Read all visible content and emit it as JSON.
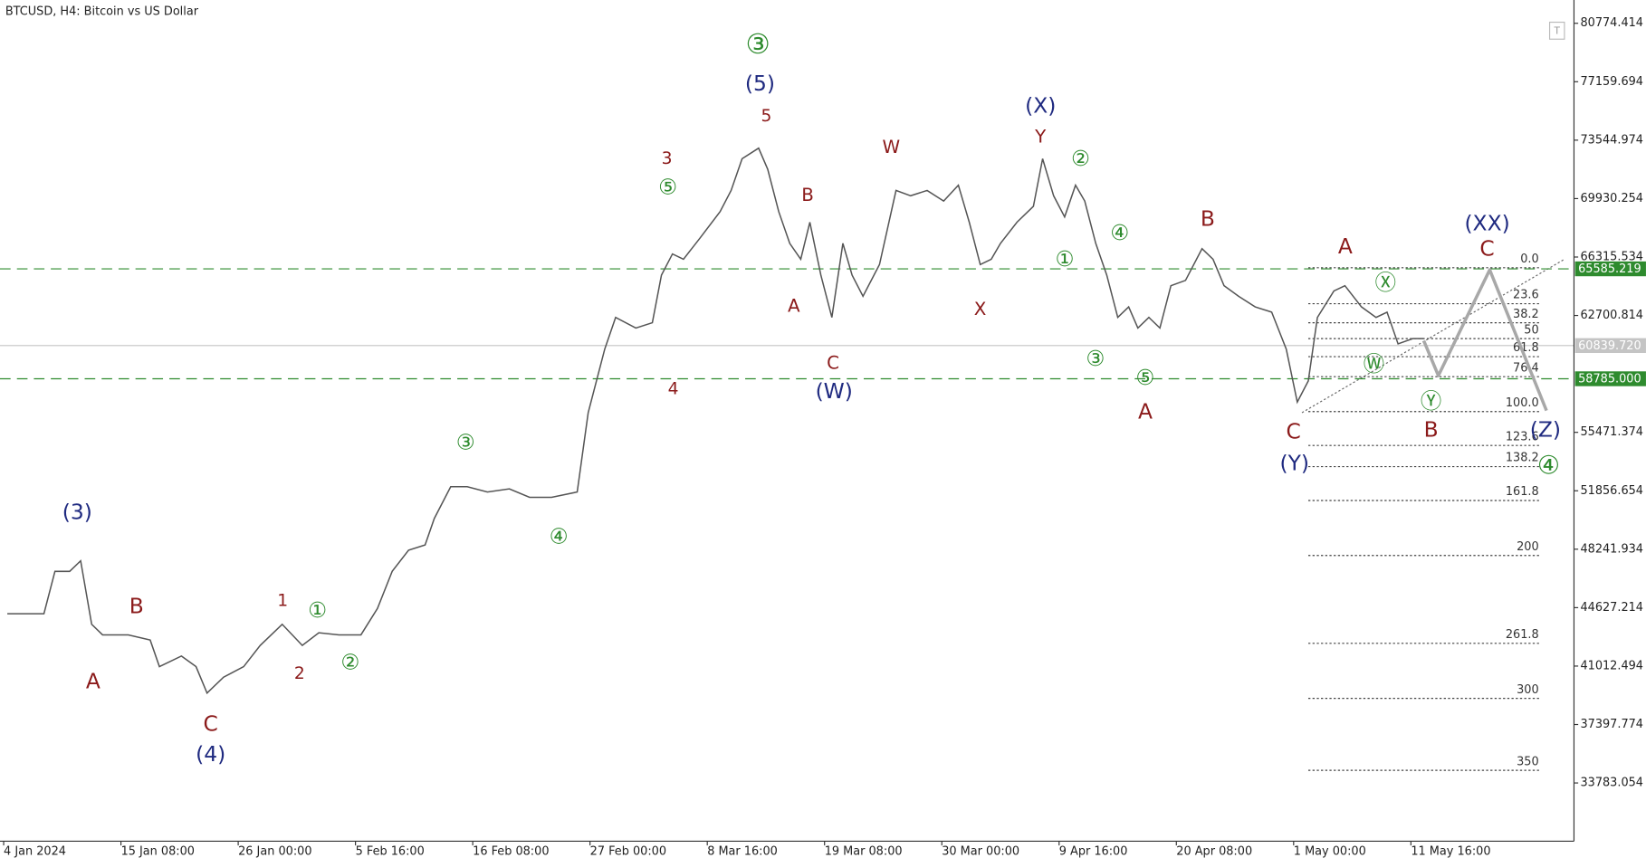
{
  "chart_data": {
    "type": "line",
    "title": "BTCUSD, H4:  Bitcoin vs US Dollar",
    "color": "#555555",
    "xlim": [
      -2,
      857
    ],
    "ylim": [
      30180,
      82215
    ],
    "xticks": [
      {
        "value": 0,
        "label": "4 Jan 2024"
      },
      {
        "value": 64,
        "label": "15 Jan 08:00"
      },
      {
        "value": 128,
        "label": "26 Jan 00:00"
      },
      {
        "value": 192,
        "label": "5 Feb 16:00"
      },
      {
        "value": 256,
        "label": "16 Feb 08:00"
      },
      {
        "value": 320,
        "label": "27 Feb 00:00"
      },
      {
        "value": 384,
        "label": "8 Mar 16:00"
      },
      {
        "value": 448,
        "label": "19 Mar 08:00"
      },
      {
        "value": 512,
        "label": "30 Mar 00:00"
      },
      {
        "value": 576,
        "label": "9 Apr 16:00"
      },
      {
        "value": 640,
        "label": "20 Apr 08:00"
      },
      {
        "value": 704,
        "label": "1 May 00:00"
      },
      {
        "value": 768,
        "label": "11 May 16:00"
      }
    ],
    "yticks": [
      80774.414,
      77159.694,
      73544.974,
      69930.254,
      66315.534,
      62700.814,
      55471.374,
      51856.654,
      48241.934,
      44627.214,
      41012.494,
      37397.774,
      33783.054
    ],
    "x": [
      2,
      22,
      28,
      36,
      42,
      48,
      54,
      68,
      80,
      85,
      97,
      105,
      111,
      120,
      131,
      140,
      152,
      163,
      172,
      183,
      195,
      204,
      212,
      221,
      230,
      235,
      244,
      253,
      264,
      276,
      287,
      299,
      313,
      319,
      328,
      334,
      345,
      354,
      359,
      365,
      371,
      380,
      391,
      397,
      403,
      412,
      417,
      423,
      429,
      435,
      440,
      446,
      452,
      458,
      463,
      469,
      478,
      487,
      495,
      504,
      513,
      521,
      527,
      533,
      539,
      544,
      553,
      562,
      567,
      573,
      579,
      585,
      590,
      596,
      602,
      608,
      614,
      619,
      625,
      631,
      637,
      645,
      654,
      660,
      666,
      674,
      683,
      692,
      700,
      706,
      712,
      717,
      726,
      732,
      741,
      749,
      755,
      761,
      769,
      775
    ],
    "values": [
      44250,
      44250,
      46870,
      46870,
      47525,
      43600,
      42945,
      42945,
      42620,
      40980,
      41635,
      40980,
      39345,
      40325,
      40980,
      42290,
      43600,
      42290,
      43075,
      42945,
      42945,
      44580,
      46870,
      48180,
      48505,
      50145,
      52105,
      52105,
      51780,
      51975,
      51450,
      51450,
      51780,
      56690,
      60615,
      62580,
      61925,
      62250,
      65195,
      66505,
      66180,
      67490,
      69125,
      70435,
      72395,
      73050,
      71740,
      69125,
      67160,
      66180,
      68470,
      65195,
      62580,
      67160,
      65195,
      63890,
      65850,
      70435,
      70105,
      70435,
      69780,
      70760,
      68470,
      65850,
      66180,
      67160,
      68470,
      69450,
      72395,
      70105,
      68795,
      70760,
      69780,
      67160,
      65195,
      62580,
      63235,
      61925,
      62580,
      61925,
      64540,
      64870,
      66835,
      66180,
      64540,
      63890,
      63235,
      62905,
      60615,
      57345,
      58650,
      62580,
      64215,
      64540,
      63235,
      62580,
      62905,
      60945,
      61270,
      61270
    ],
    "projection": {
      "color": "#a8a8a8",
      "x": [
        775,
        783,
        811,
        842
      ],
      "values": [
        61140,
        58980,
        65525,
        56820
      ]
    },
    "levels": [
      {
        "value": 65585.219,
        "color": "#2e8b2e",
        "dashed": true
      },
      {
        "value": 60839.72,
        "label": "60839.720",
        "color": "#c4c4c4",
        "dashed": false
      },
      {
        "value": 58785.0,
        "label": "58785.000",
        "color": "#2e8b2e",
        "dashed": true
      }
    ],
    "fibonacci": {
      "color": "#444444",
      "x": [
        712,
        839
      ],
      "levels": [
        {
          "value": 65655,
          "label": "0.0"
        },
        {
          "value": 63430,
          "label": "23.6"
        },
        {
          "value": 62250,
          "label": "38.2"
        },
        {
          "value": 61270,
          "label": "50"
        },
        {
          "value": 60155,
          "label": "61.8"
        },
        {
          "value": 58915,
          "label": "76.4"
        },
        {
          "value": 56755,
          "label": "100.0"
        },
        {
          "value": 54660,
          "label": "123.6"
        },
        {
          "value": 53350,
          "label": "138.2"
        },
        {
          "value": 51255,
          "label": "161.8"
        },
        {
          "value": 47855,
          "label": "200"
        },
        {
          "value": 42420,
          "label": "261.8"
        },
        {
          "value": 39015,
          "label": "300"
        },
        {
          "value": 34565,
          "label": "350"
        }
      ]
    },
    "annotations": [
      {
        "text": "(3)",
        "color": "#1f2a80"
      },
      {
        "text": "B",
        "color": "#8b1a1a"
      },
      {
        "text": "A",
        "color": "#8b1a1a"
      },
      {
        "text": "C",
        "color": "#8b1a1a"
      },
      {
        "text": "(4)",
        "color": "#1f2a80"
      },
      {
        "text": "1",
        "color": "#8b1a1a"
      },
      {
        "text": "①",
        "color": "#2e8b2e"
      },
      {
        "text": "2",
        "color": "#8b1a1a"
      },
      {
        "text": "②",
        "color": "#2e8b2e"
      },
      {
        "text": "③",
        "color": "#2e8b2e"
      },
      {
        "text": "④",
        "color": "#2e8b2e"
      },
      {
        "text": "③",
        "color": "#2e8b2e"
      },
      {
        "text": "(5)",
        "color": "#1f2a80"
      },
      {
        "text": "5",
        "color": "#8b1a1a"
      },
      {
        "text": "3",
        "color": "#8b1a1a"
      },
      {
        "text": "⑤",
        "color": "#2e8b2e"
      },
      {
        "text": "4",
        "color": "#8b1a1a"
      },
      {
        "text": "B",
        "color": "#8b1a1a"
      },
      {
        "text": "A",
        "color": "#8b1a1a"
      },
      {
        "text": "C",
        "color": "#8b1a1a"
      },
      {
        "text": "(W)",
        "color": "#1f2a80"
      },
      {
        "text": "W",
        "color": "#8b1a1a"
      },
      {
        "text": "X",
        "color": "#8b1a1a"
      },
      {
        "text": "(X)",
        "color": "#1f2a80"
      },
      {
        "text": "Y",
        "color": "#8b1a1a"
      },
      {
        "text": "②",
        "color": "#2e8b2e"
      },
      {
        "text": "①",
        "color": "#2e8b2e"
      },
      {
        "text": "④",
        "color": "#2e8b2e"
      },
      {
        "text": "③",
        "color": "#2e8b2e"
      },
      {
        "text": "⑤",
        "color": "#2e8b2e"
      },
      {
        "text": "A",
        "color": "#8b1a1a"
      },
      {
        "text": "B",
        "color": "#8b1a1a"
      },
      {
        "text": "C",
        "color": "#8b1a1a"
      },
      {
        "text": "(Y)",
        "color": "#1f2a80"
      },
      {
        "text": "A",
        "color": "#8b1a1a"
      },
      {
        "text": "Ⓧ",
        "color": "#2e8b2e"
      },
      {
        "text": "Ⓦ",
        "color": "#2e8b2e"
      },
      {
        "text": "Ⓨ",
        "color": "#2e8b2e"
      },
      {
        "text": "B",
        "color": "#8b1a1a"
      },
      {
        "text": "(XX)",
        "color": "#1f2a80"
      },
      {
        "text": "C",
        "color": "#8b1a1a"
      },
      {
        "text": "(Z)",
        "color": "#1f2a80"
      },
      {
        "text": "④",
        "color": "#2e8b2e"
      }
    ]
  }
}
